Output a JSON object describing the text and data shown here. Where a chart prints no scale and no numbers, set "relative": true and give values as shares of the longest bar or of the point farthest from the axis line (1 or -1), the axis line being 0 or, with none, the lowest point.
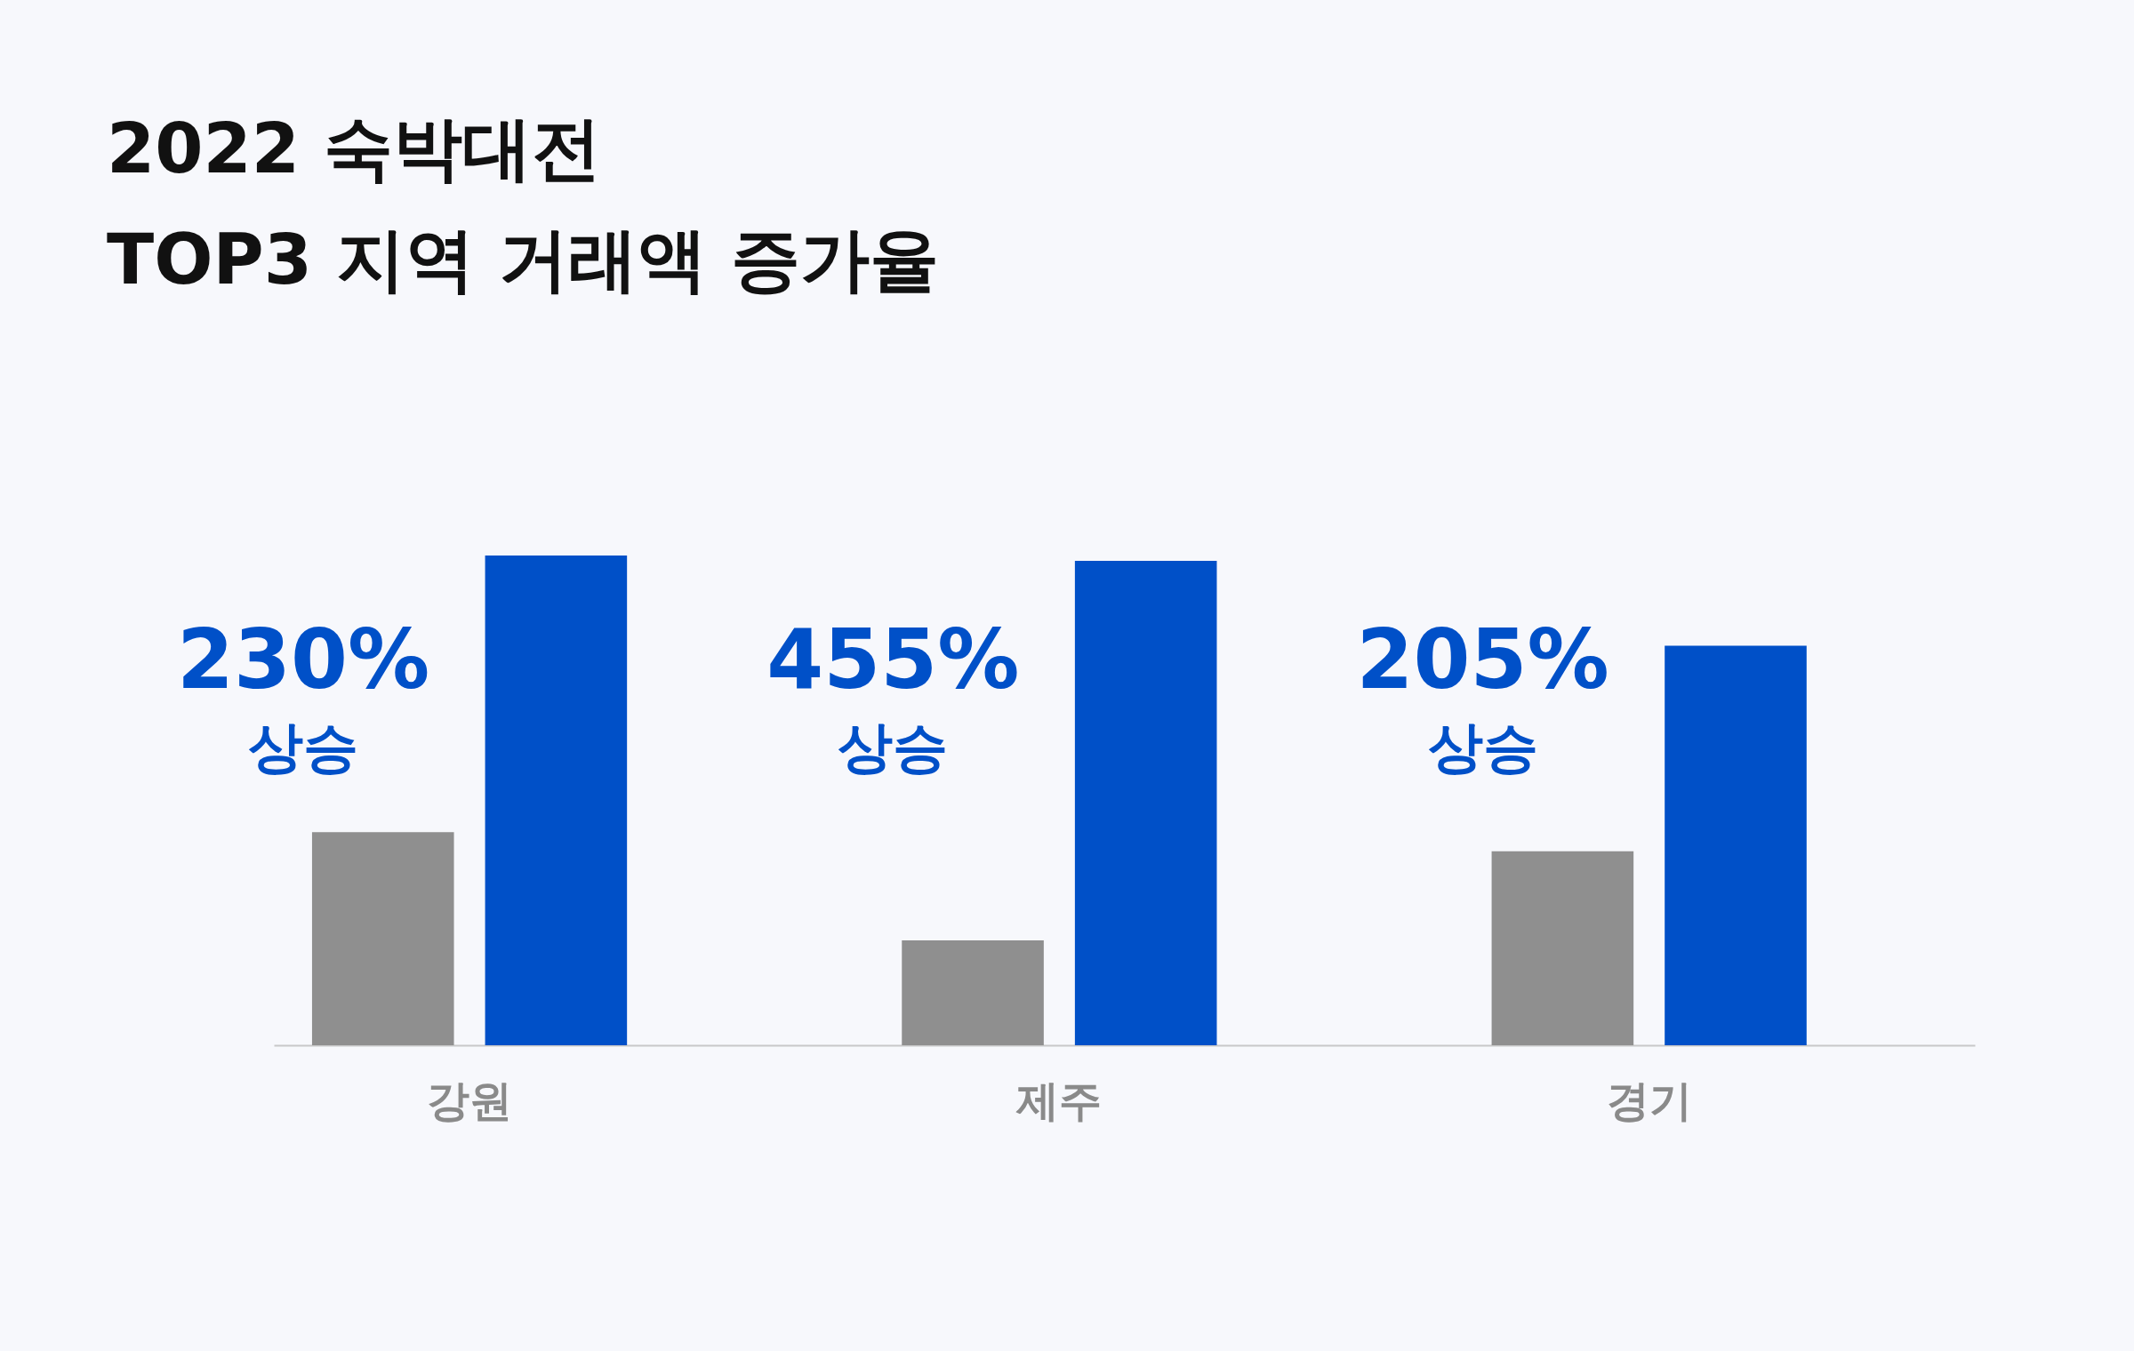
{
  "chart_data": {
    "type": "bar",
    "title": "2022 숙박대전\nTOP3 지역 거래액 증가율",
    "categories": [
      "강원",
      "제주",
      "경기"
    ],
    "relative": true,
    "legend": false,
    "series": [
      {
        "color": "#8f8f8f",
        "values": [
          0.435,
          0.214,
          0.396
        ]
      },
      {
        "color": "#0050c8",
        "values": [
          1,
          0.989,
          0.816
        ]
      }
    ],
    "annotations": [
      "230%",
      "상승",
      "455%",
      "상승",
      "205%",
      "상승"
    ]
  }
}
